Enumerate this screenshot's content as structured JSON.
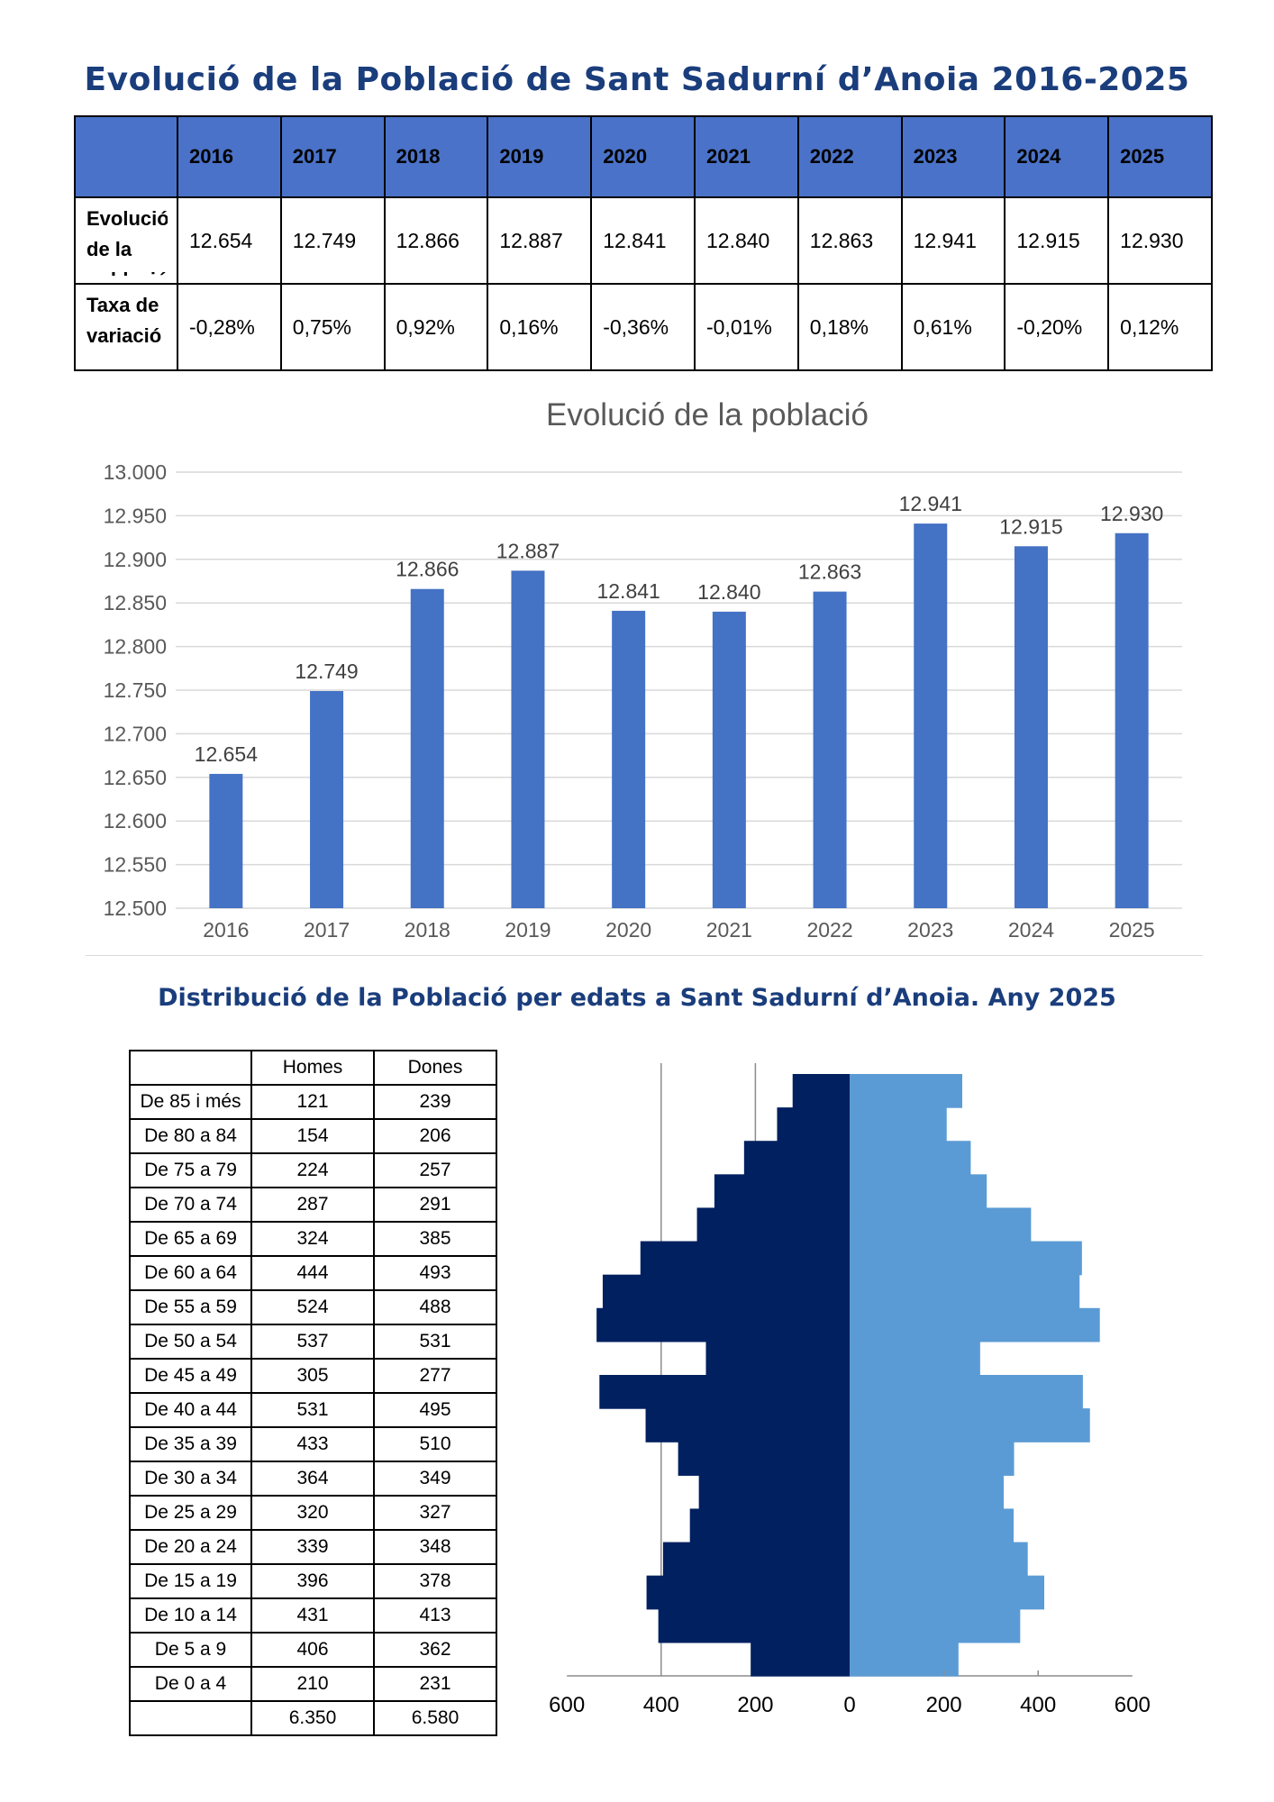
{
  "title": "Evolució de la Població de Sant Sadurní d’Anoia 2016-2025",
  "table1": {
    "years": [
      "2016",
      "2017",
      "2018",
      "2019",
      "2020",
      "2021",
      "2022",
      "2023",
      "2024",
      "2025"
    ],
    "rows": [
      {
        "label": "Evolució de la població",
        "values": [
          "12.654",
          "12.749",
          "12.866",
          "12.887",
          "12.841",
          "12.840",
          "12.863",
          "12.941",
          "12.915",
          "12.930"
        ]
      },
      {
        "label": "Taxa de variació",
        "values": [
          "-0,28%",
          "0,75%",
          "0,92%",
          "0,16%",
          "-0,36%",
          "-0,01%",
          "0,18%",
          "0,61%",
          "-0,20%",
          "0,12%"
        ]
      }
    ]
  },
  "chart_data": [
    {
      "type": "bar",
      "title": "Evolució de la població",
      "categories": [
        "2016",
        "2017",
        "2018",
        "2019",
        "2020",
        "2021",
        "2022",
        "2023",
        "2024",
        "2025"
      ],
      "values": [
        12654,
        12749,
        12866,
        12887,
        12841,
        12840,
        12863,
        12941,
        12915,
        12930
      ],
      "data_labels": [
        "12.654",
        "12.749",
        "12.866",
        "12.887",
        "12.841",
        "12.840",
        "12.863",
        "12.941",
        "12.915",
        "12.930"
      ],
      "ylim": [
        12500,
        13000
      ],
      "yticks": [
        "12.500",
        "12.550",
        "12.600",
        "12.650",
        "12.700",
        "12.750",
        "12.800",
        "12.850",
        "12.900",
        "12.950",
        "13.000"
      ],
      "grid": true,
      "color": "#4472c4"
    },
    {
      "type": "bar",
      "orientation": "horizontal-population-pyramid",
      "categories": [
        "De 0 a 4",
        "De 5 a 9",
        "De 10 a 14",
        "De 15 a 19",
        "De 20 a 24",
        "De 25 a 29",
        "De 30 a 34",
        "De 35 a 39",
        "De 40 a 44",
        "De 45 a 49",
        "De 50 a 54",
        "De 55 a 59",
        "De 60 a 64",
        "De 65 a 69",
        "De 70 a 74",
        "De 75 a 79",
        "De 80 a 84",
        "De 85 i més"
      ],
      "series": [
        {
          "values": [
            210,
            406,
            431,
            396,
            339,
            320,
            364,
            433,
            531,
            305,
            537,
            524,
            444,
            324,
            287,
            224,
            154,
            121
          ],
          "color": "#002060"
        },
        {
          "values": [
            231,
            362,
            413,
            378,
            348,
            327,
            349,
            510,
            495,
            277,
            531,
            488,
            493,
            385,
            291,
            257,
            206,
            239
          ],
          "color": "#5b9bd5"
        }
      ],
      "xlim": [
        -600,
        600
      ],
      "xticks": [
        "600",
        "400",
        "200",
        "0",
        "200",
        "400",
        "600"
      ],
      "grid": true
    }
  ],
  "subtitle": "Distribució de la Població per edats a Sant Sadurní d’Anoia. Any 2025",
  "table2": {
    "headers": [
      "",
      "Homes",
      "Dones"
    ],
    "rows": [
      [
        "De 85 i més",
        "121",
        "239"
      ],
      [
        "De 80 a 84",
        "154",
        "206"
      ],
      [
        "De 75 a 79",
        "224",
        "257"
      ],
      [
        "De 70 a 74",
        "287",
        "291"
      ],
      [
        "De 65 a 69",
        "324",
        "385"
      ],
      [
        "De 60 a 64",
        "444",
        "493"
      ],
      [
        "De 55 a 59",
        "524",
        "488"
      ],
      [
        "De 50 a 54",
        "537",
        "531"
      ],
      [
        "De 45 a 49",
        "305",
        "277"
      ],
      [
        "De 40 a 44",
        "531",
        "495"
      ],
      [
        "De 35 a 39",
        "433",
        "510"
      ],
      [
        "De 30 a 34",
        "364",
        "349"
      ],
      [
        "De 25 a 29",
        "320",
        "327"
      ],
      [
        "De 20 a 24",
        "339",
        "348"
      ],
      [
        "De 15 a 19",
        "396",
        "378"
      ],
      [
        "De 10 a 14",
        "431",
        "413"
      ],
      [
        "De 5 a 9",
        "406",
        "362"
      ],
      [
        "De 0 a 4",
        "210",
        "231"
      ]
    ],
    "totals": [
      "",
      "6.350",
      "6.580"
    ]
  }
}
